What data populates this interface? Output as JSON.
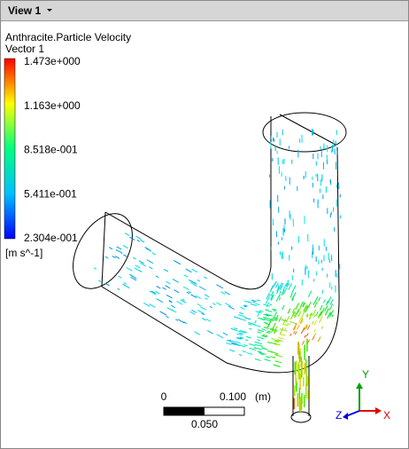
{
  "header": {
    "title": "View 1"
  },
  "legend": {
    "title": "Anthracite.Particle Velocity",
    "subtitle": "Vector 1",
    "unit": "[m s^-1]",
    "ticks": [
      {
        "value": 1.473,
        "label": "1.473e+000"
      },
      {
        "value": 1.163,
        "label": "1.163e+000"
      },
      {
        "value": 0.8518,
        "label": "8.518e-001"
      },
      {
        "value": 0.5411,
        "label": "5.411e-001"
      },
      {
        "value": 0.2304,
        "label": "2.304e-001"
      }
    ]
  },
  "scale": {
    "start": "0",
    "end": "0.100",
    "unit": "(m)",
    "mid": "0.050"
  },
  "axes": {
    "x": "X",
    "y": "Y",
    "z": "Z"
  }
}
